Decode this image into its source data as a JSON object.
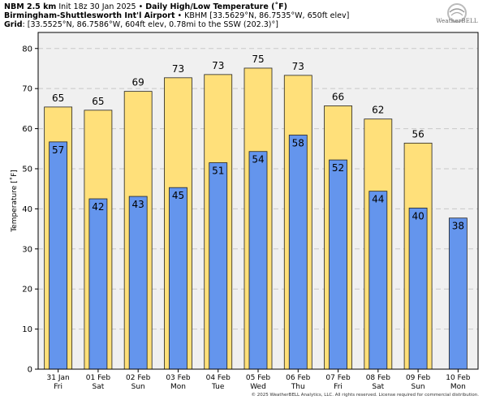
{
  "header": {
    "line1_bold_a": "NBM 2.5 km",
    "line1_text": " Init 18z 30 Jan 2025 • ",
    "line1_bold_b": "Daily High/Low Temperature (˚F)",
    "line2_bold": "Birmingham-Shuttlesworth Int'l Airport",
    "line2_text": " • KBHM [33.5629°N, 86.7535°W, 650ft elev]",
    "line3_bold": "Grid",
    "line3_text": ": [33.5525°N, 86.7586°W, 604ft elev, 0.78mi to the SSW (202.3)°]"
  },
  "logo": {
    "text": "WeatherBELL"
  },
  "copyright": "© 2025 WeatherBELL Analytics, LLC. All rights reserved. License required for commercial distribution.",
  "chart_data": {
    "type": "bar",
    "ylabel": "Temperature [˚F]",
    "ylim": [
      0,
      84
    ],
    "yticks": [
      0,
      10,
      20,
      30,
      40,
      50,
      60,
      70,
      80
    ],
    "grid": true,
    "categories": [
      {
        "date": "31 Jan",
        "day": "Fri"
      },
      {
        "date": "01 Feb",
        "day": "Sat"
      },
      {
        "date": "02 Feb",
        "day": "Sun"
      },
      {
        "date": "03 Feb",
        "day": "Mon"
      },
      {
        "date": "04 Feb",
        "day": "Tue"
      },
      {
        "date": "05 Feb",
        "day": "Wed"
      },
      {
        "date": "06 Feb",
        "day": "Thu"
      },
      {
        "date": "07 Feb",
        "day": "Fri"
      },
      {
        "date": "08 Feb",
        "day": "Sat"
      },
      {
        "date": "09 Feb",
        "day": "Sun"
      },
      {
        "date": "10 Feb",
        "day": "Mon"
      }
    ],
    "series": [
      {
        "key": "high",
        "color": "#ffe07a",
        "values": [
          65,
          65,
          69,
          73,
          73,
          75,
          73,
          66,
          62,
          56,
          null
        ],
        "plotted": [
          65.4,
          64.6,
          69.3,
          72.7,
          73.5,
          75.1,
          73.3,
          65.7,
          62.4,
          56.4,
          null
        ]
      },
      {
        "key": "low",
        "color": "#6495ed",
        "values": [
          57,
          42,
          43,
          45,
          51,
          54,
          58,
          52,
          44,
          40,
          38
        ],
        "plotted": [
          56.7,
          42.5,
          43.1,
          45.3,
          51.5,
          54.3,
          58.4,
          52.2,
          44.4,
          40.2,
          37.7
        ]
      }
    ],
    "colors": {
      "plot_bg": "#f0f0f0",
      "grid": "#c8c8c8",
      "edge": "#222222"
    }
  }
}
